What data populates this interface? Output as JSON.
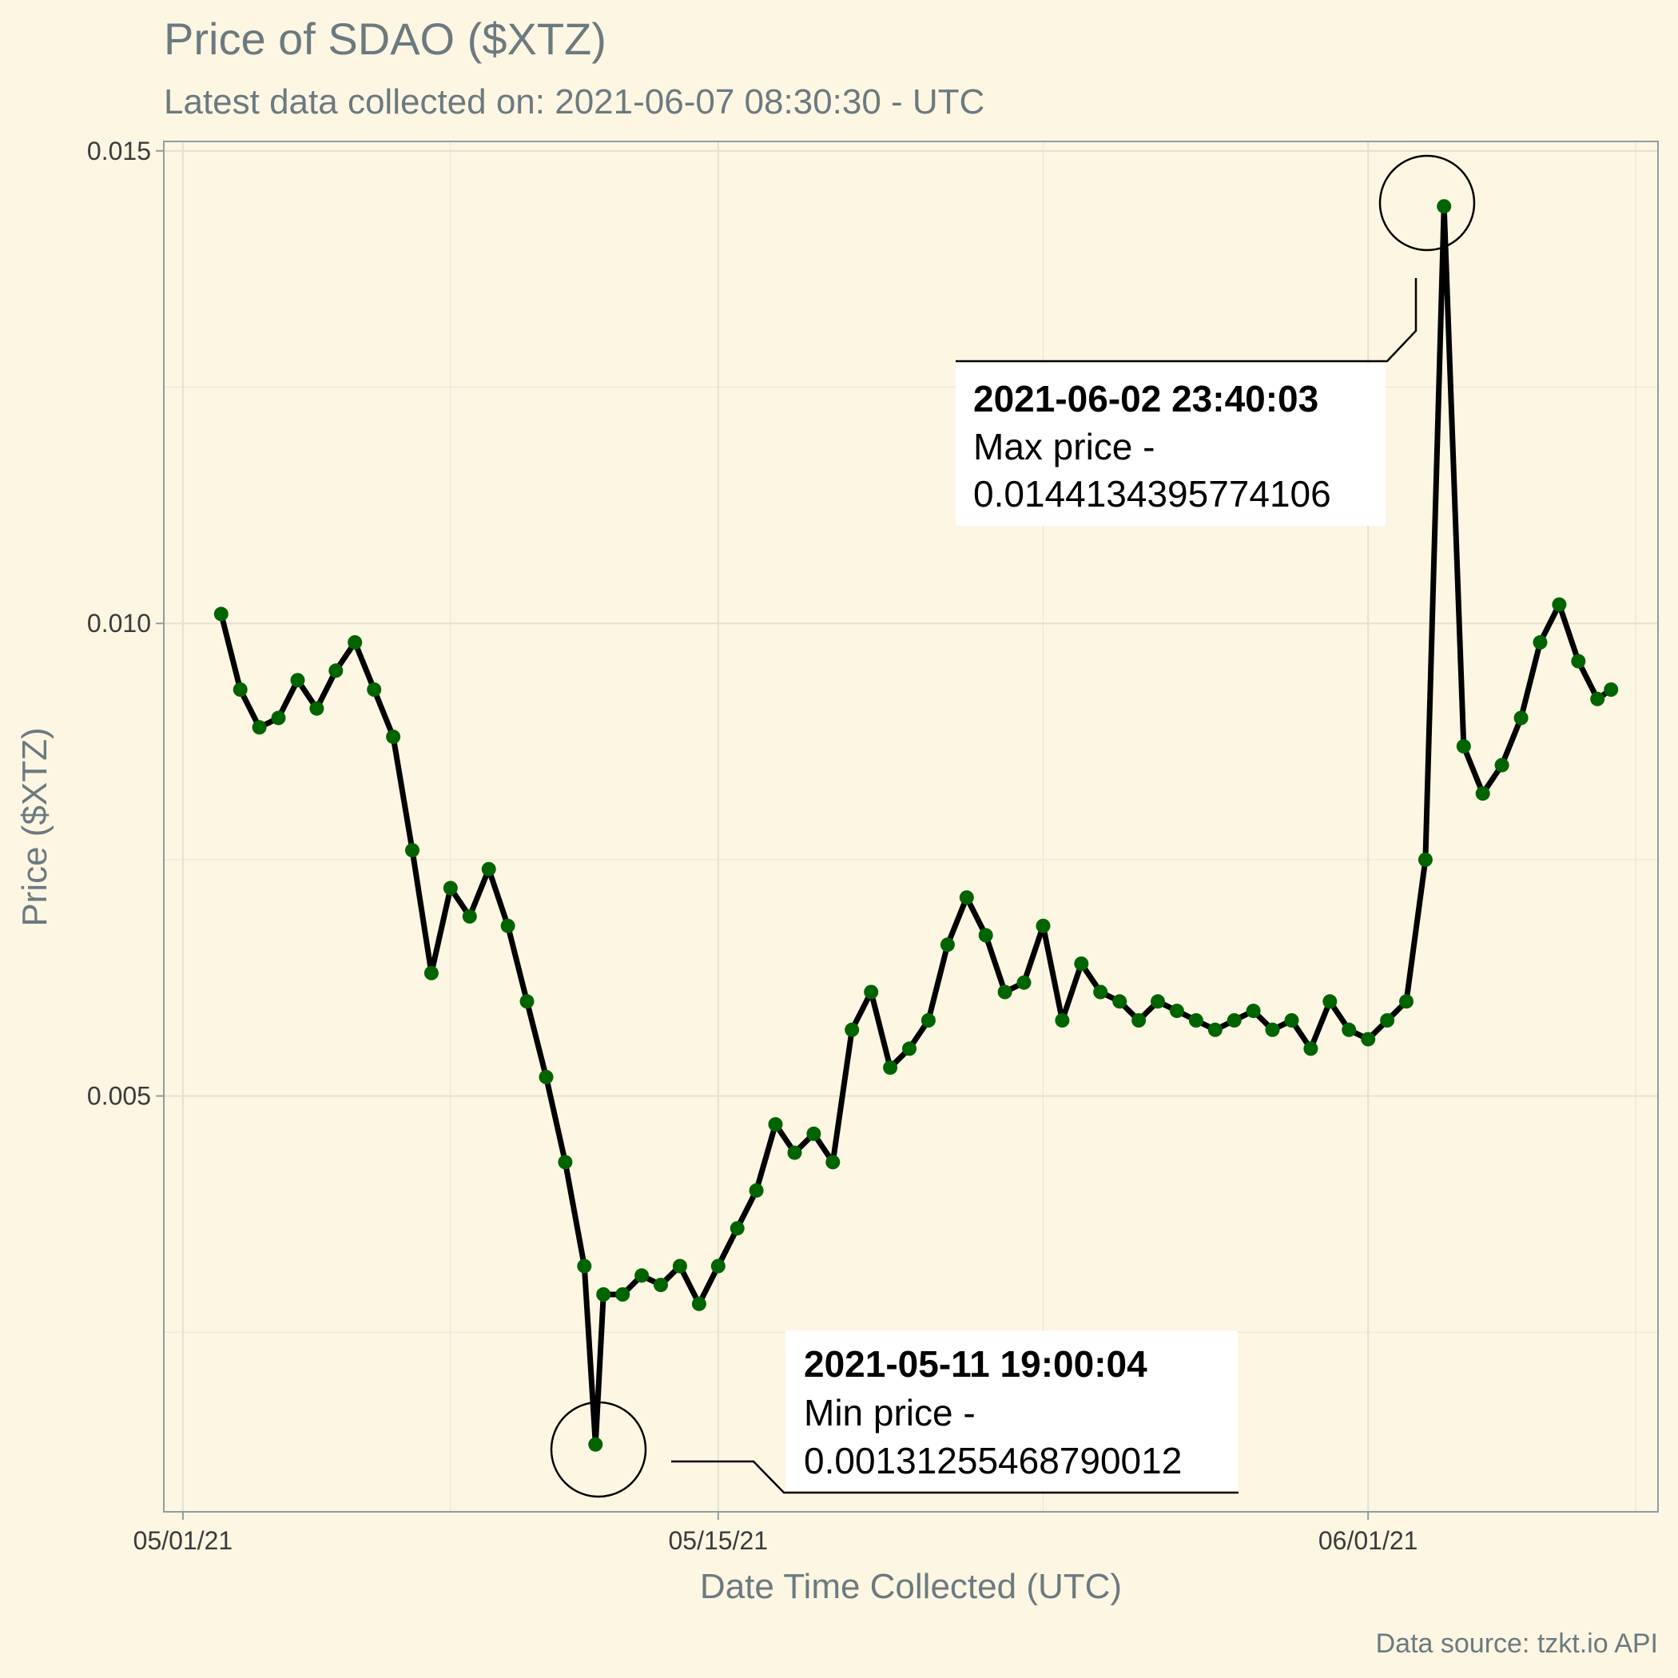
{
  "chart_data": {
    "type": "line",
    "title": "Price of SDAO ($XTZ)",
    "subtitle": "Latest data collected on: 2021-06-07 08:30:30  - UTC",
    "xlabel": "Date Time Collected (UTC)",
    "ylabel": "Price ($XTZ)",
    "caption": "Data source: tzkt.io API",
    "x_ticks": [
      "05/01/21",
      "05/15/21",
      "06/01/21"
    ],
    "y_ticks": [
      "0.005",
      "0.010",
      "0.015"
    ],
    "xlim": [
      "2021-04-30T12:00",
      "2021-06-08T14:00"
    ],
    "ylim": [
      0.0006,
      0.0151
    ],
    "grid": true,
    "line_color": "#000000",
    "point_color": "#006400",
    "series": [
      {
        "x": [
          "2021-05-02T00:00",
          "2021-05-02T12:00",
          "2021-05-03T00:00",
          "2021-05-03T12:00",
          "2021-05-04T00:00",
          "2021-05-04T12:00",
          "2021-05-05T00:00",
          "2021-05-05T12:00",
          "2021-05-06T00:00",
          "2021-05-06T12:00",
          "2021-05-07T00:00",
          "2021-05-07T12:00",
          "2021-05-08T00:00",
          "2021-05-08T12:00",
          "2021-05-09T00:00",
          "2021-05-09T12:00",
          "2021-05-10T00:00",
          "2021-05-10T12:00",
          "2021-05-11T00:00",
          "2021-05-11T12:00",
          "2021-05-11T19:00:04",
          "2021-05-12T00:00",
          "2021-05-12T12:00",
          "2021-05-13T00:00",
          "2021-05-13T12:00",
          "2021-05-14T00:00",
          "2021-05-14T12:00",
          "2021-05-15T00:00",
          "2021-05-15T12:00",
          "2021-05-16T00:00",
          "2021-05-16T12:00",
          "2021-05-17T00:00",
          "2021-05-17T12:00",
          "2021-05-18T00:00",
          "2021-05-18T12:00",
          "2021-05-19T00:00",
          "2021-05-19T12:00",
          "2021-05-20T00:00",
          "2021-05-20T12:00",
          "2021-05-21T00:00",
          "2021-05-21T12:00",
          "2021-05-22T00:00",
          "2021-05-22T12:00",
          "2021-05-23T00:00",
          "2021-05-23T12:00",
          "2021-05-24T00:00",
          "2021-05-24T12:00",
          "2021-05-25T00:00",
          "2021-05-25T12:00",
          "2021-05-26T00:00",
          "2021-05-26T12:00",
          "2021-05-27T00:00",
          "2021-05-27T12:00",
          "2021-05-28T00:00",
          "2021-05-28T12:00",
          "2021-05-29T00:00",
          "2021-05-29T12:00",
          "2021-05-30T00:00",
          "2021-05-30T12:00",
          "2021-05-31T00:00",
          "2021-05-31T12:00",
          "2021-06-01T00:00",
          "2021-06-01T12:00",
          "2021-06-02T00:00",
          "2021-06-02T12:00",
          "2021-06-02T23:40:03",
          "2021-06-03T12:00",
          "2021-06-04T00:00",
          "2021-06-04T12:00",
          "2021-06-05T00:00",
          "2021-06-05T12:00",
          "2021-06-06T00:00",
          "2021-06-06T12:00",
          "2021-06-07T00:00",
          "2021-06-07T08:30"
        ],
        "y": [
          0.0101,
          0.0093,
          0.0089,
          0.009,
          0.0094,
          0.0091,
          0.0095,
          0.0098,
          0.0093,
          0.0088,
          0.0076,
          0.0063,
          0.0072,
          0.0069,
          0.0074,
          0.0068,
          0.006,
          0.0052,
          0.0043,
          0.0032,
          0.00131255468790012,
          0.0029,
          0.0029,
          0.0031,
          0.003,
          0.0032,
          0.0028,
          0.0032,
          0.0036,
          0.004,
          0.0047,
          0.0044,
          0.0046,
          0.0043,
          0.0057,
          0.0061,
          0.0053,
          0.0055,
          0.0058,
          0.0066,
          0.0071,
          0.0067,
          0.0061,
          0.0062,
          0.0068,
          0.0058,
          0.0064,
          0.0061,
          0.006,
          0.0058,
          0.006,
          0.0059,
          0.0058,
          0.0057,
          0.0058,
          0.0059,
          0.0057,
          0.0058,
          0.0055,
          0.006,
          0.0057,
          0.0056,
          0.0058,
          0.006,
          0.0075,
          0.0144134395774106,
          0.0087,
          0.0082,
          0.0085,
          0.009,
          0.0098,
          0.0102,
          0.0096,
          0.0092,
          0.0093
        ]
      }
    ],
    "annotations": [
      {
        "time": "2021-06-02 23:40:03",
        "label": "Max price -",
        "value": "0.0144134395774106"
      },
      {
        "time": "2021-05-11 19:00:04",
        "label": "Min price -",
        "value": "0.00131255468790012"
      }
    ]
  }
}
